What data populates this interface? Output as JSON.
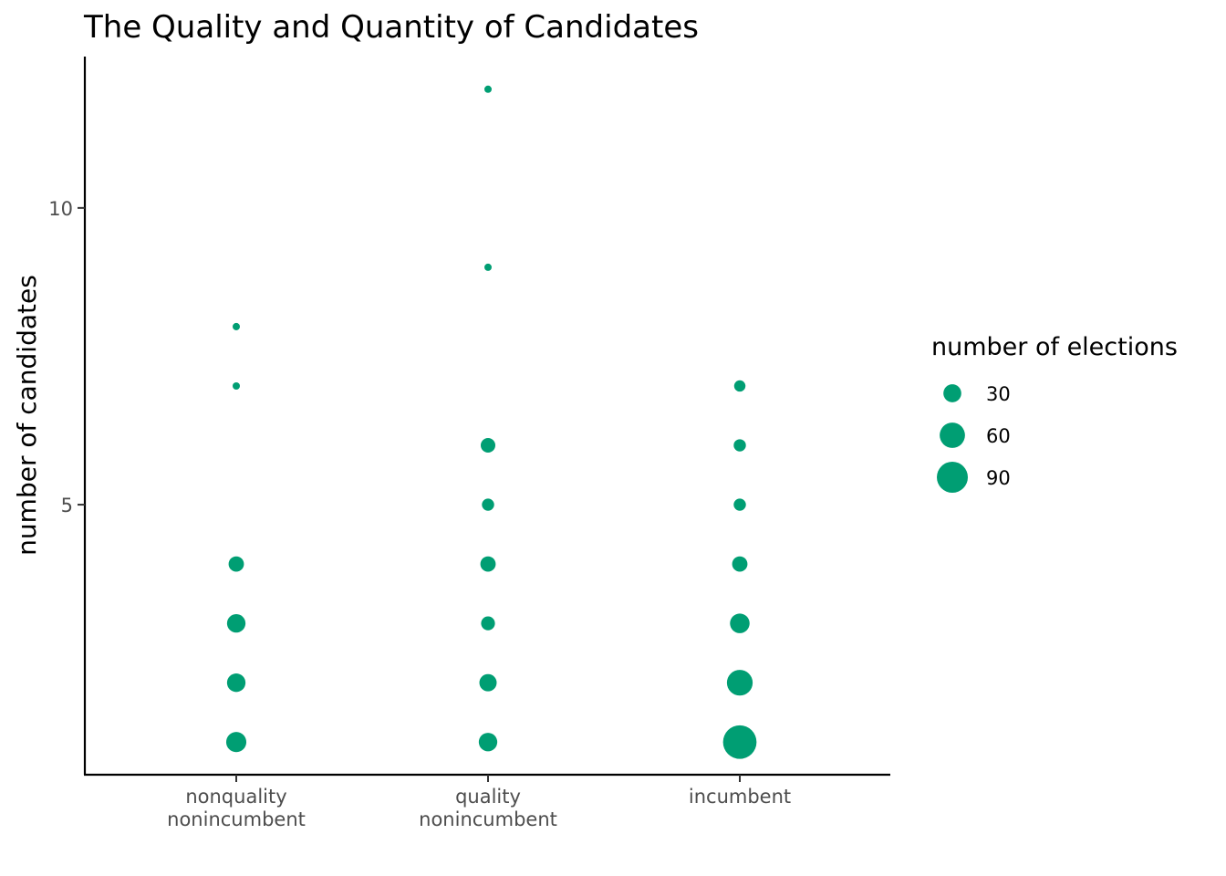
{
  "chart_data": {
    "type": "scatter",
    "title": "The Quality and Quantity of Candidates",
    "xlabel": "",
    "ylabel": "number of candidates",
    "categories": [
      [
        "nonquality",
        "nonincumbent"
      ],
      [
        "quality",
        "nonincumbent"
      ],
      [
        "incumbent"
      ]
    ],
    "ylim": [
      0.45,
      12.55
    ],
    "yticks": [
      5,
      10
    ],
    "grid": false,
    "color": "#009E73",
    "size_legend": {
      "title": "number of elections",
      "position": "right",
      "breaks": [
        30,
        60,
        90
      ]
    },
    "points": [
      {
        "category": 0,
        "y": 1,
        "size": 38
      },
      {
        "category": 0,
        "y": 2,
        "size": 32
      },
      {
        "category": 0,
        "y": 3,
        "size": 32
      },
      {
        "category": 0,
        "y": 4,
        "size": 22
      },
      {
        "category": 0,
        "y": 7,
        "size": 5
      },
      {
        "category": 0,
        "y": 8,
        "size": 5
      },
      {
        "category": 1,
        "y": 1,
        "size": 32
      },
      {
        "category": 1,
        "y": 2,
        "size": 28
      },
      {
        "category": 1,
        "y": 3,
        "size": 18
      },
      {
        "category": 1,
        "y": 4,
        "size": 22
      },
      {
        "category": 1,
        "y": 5,
        "size": 14
      },
      {
        "category": 1,
        "y": 6,
        "size": 20
      },
      {
        "category": 1,
        "y": 9,
        "size": 5
      },
      {
        "category": 1,
        "y": 12,
        "size": 5
      },
      {
        "category": 2,
        "y": 1,
        "size": 105
      },
      {
        "category": 2,
        "y": 2,
        "size": 62
      },
      {
        "category": 2,
        "y": 3,
        "size": 36
      },
      {
        "category": 2,
        "y": 4,
        "size": 22
      },
      {
        "category": 2,
        "y": 5,
        "size": 14
      },
      {
        "category": 2,
        "y": 6,
        "size": 14
      },
      {
        "category": 2,
        "y": 7,
        "size": 12
      }
    ]
  }
}
